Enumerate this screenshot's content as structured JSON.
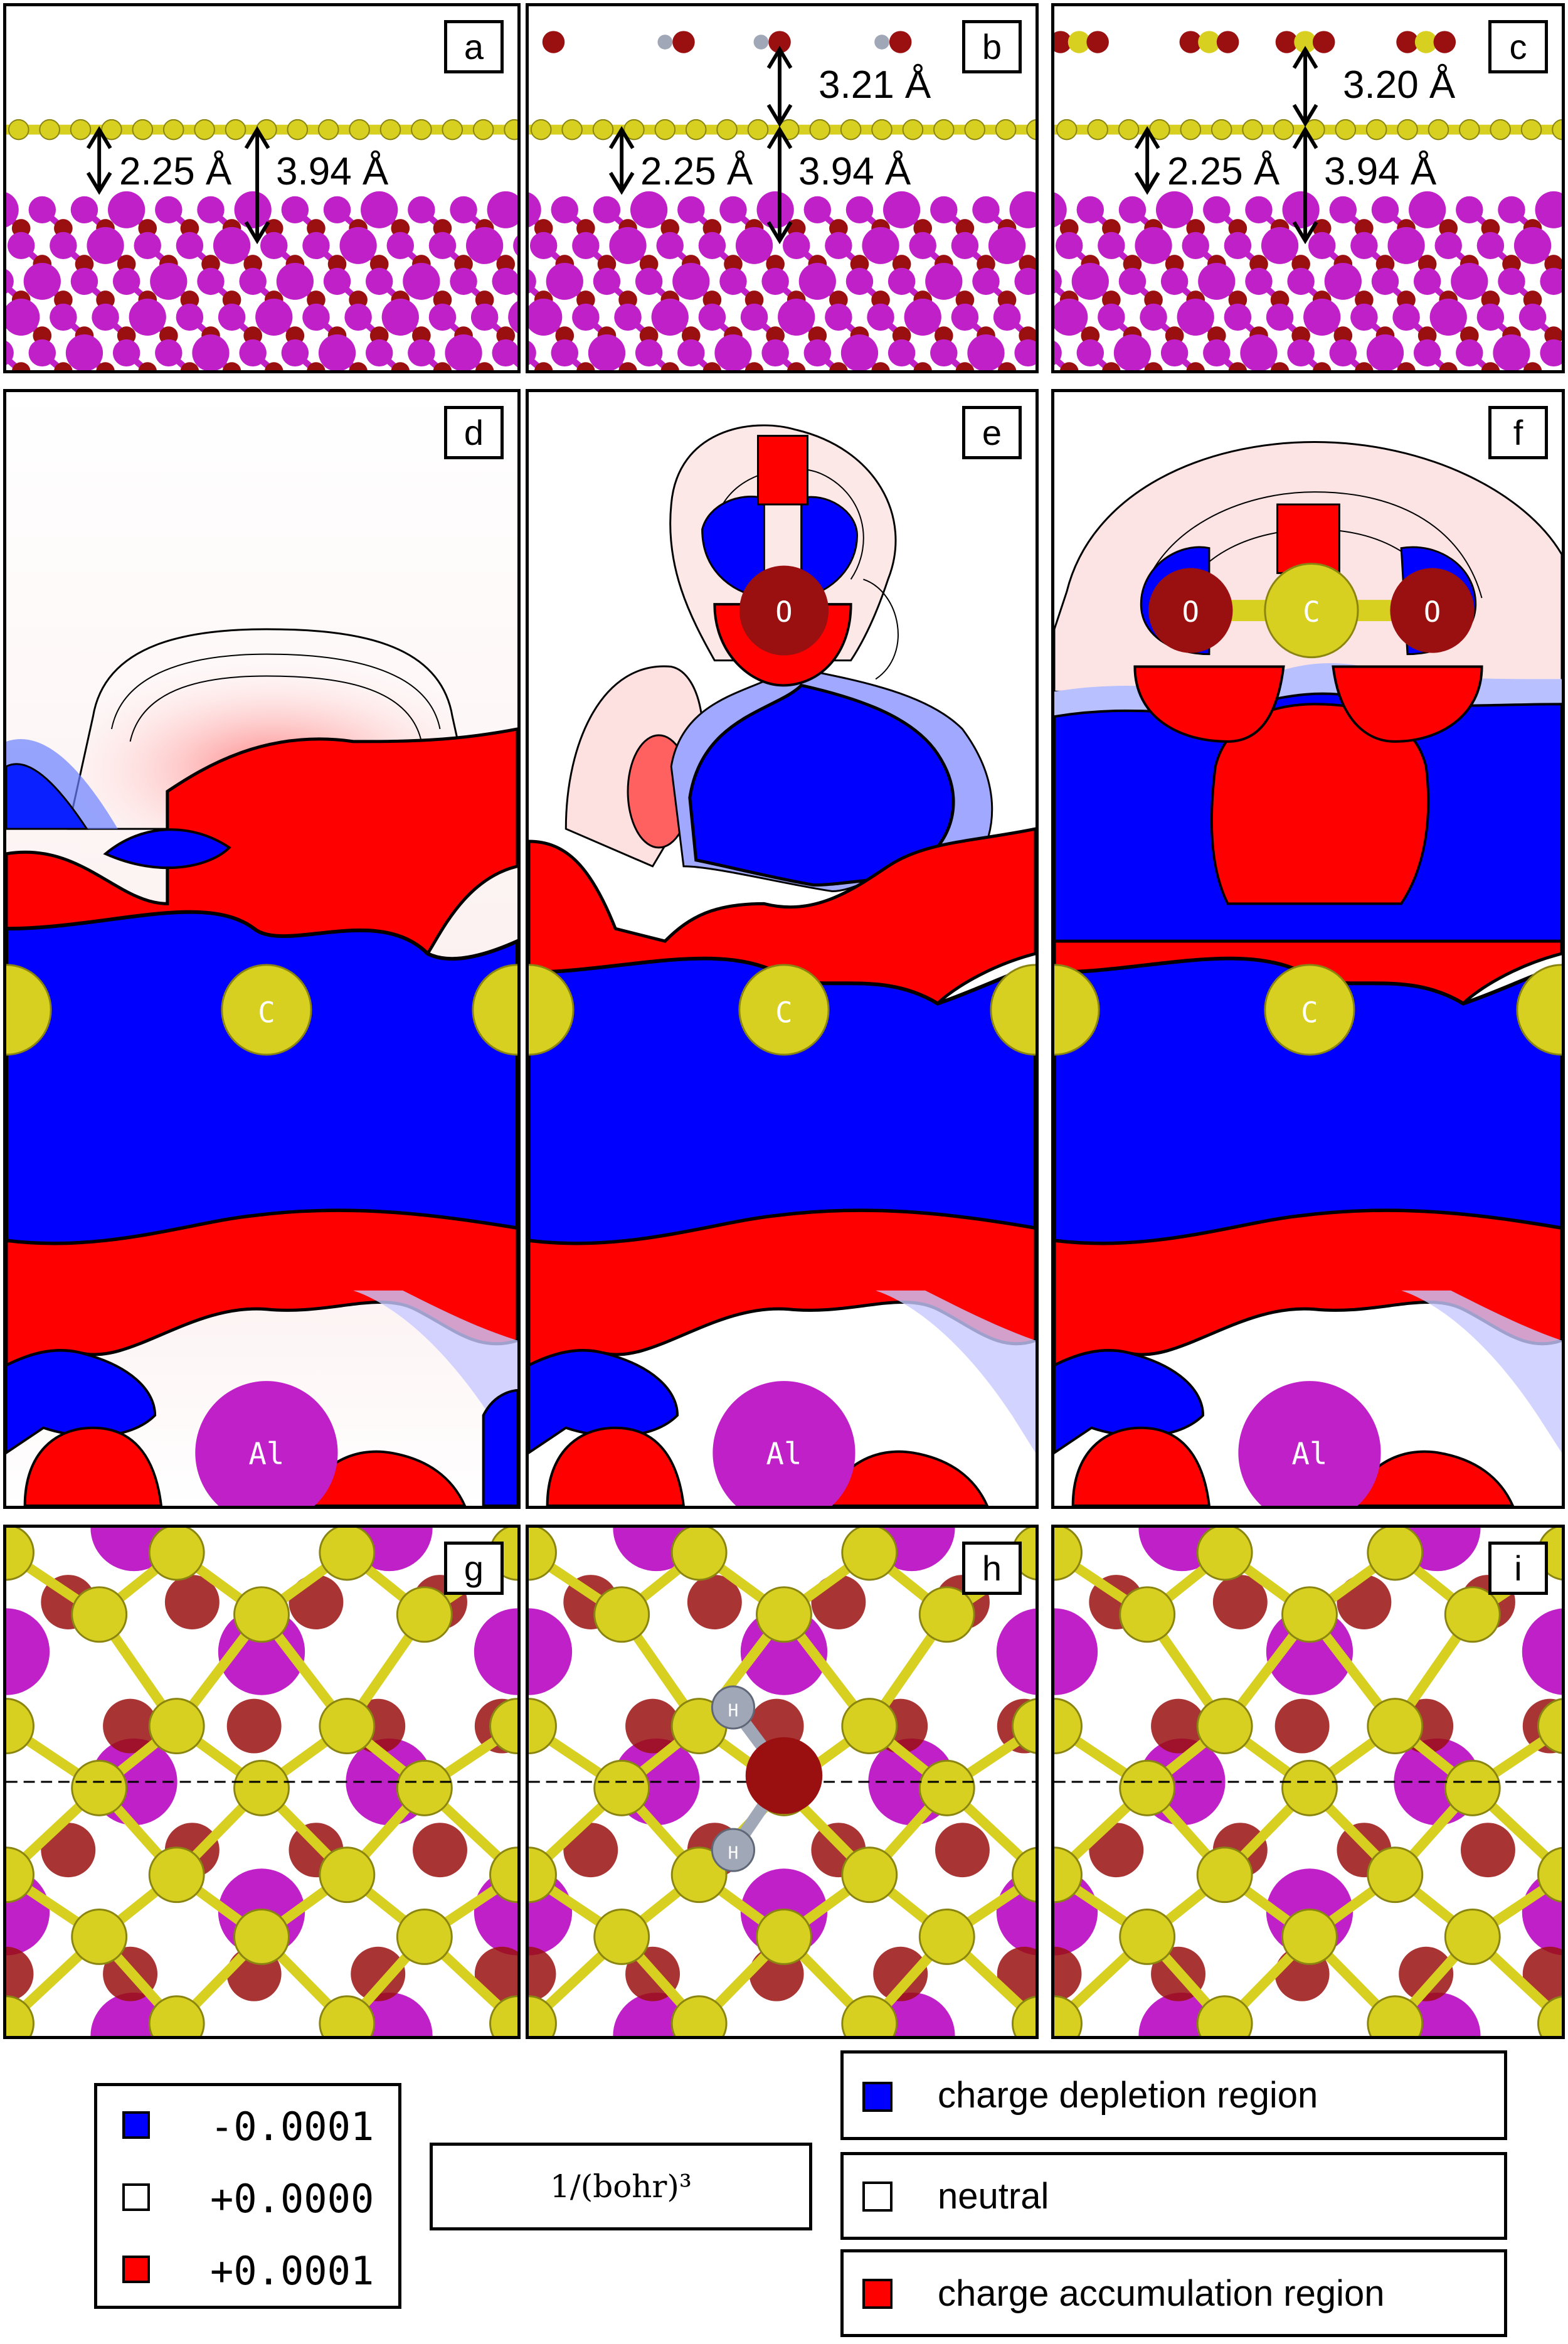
{
  "panels": {
    "a": "a",
    "b": "b",
    "c": "c",
    "d": "d",
    "e": "e",
    "f": "f",
    "g": "g",
    "h": "h",
    "i": "i"
  },
  "distances": {
    "a_left": "2.25 Å",
    "a_right": "3.94 Å",
    "b_top": "3.21 Å",
    "b_left": "2.25 Å",
    "b_right": "3.94 Å",
    "c_top": "3.20 Å",
    "c_left": "2.25 Å",
    "c_right": "3.94 Å"
  },
  "atoms": {
    "carbon": "C",
    "oxygen": "O",
    "aluminum": "Al",
    "hydrogen": "H"
  },
  "legend": {
    "values": [
      {
        "value": "-0.0001",
        "color": "#0000ff"
      },
      {
        "value": "+0.0000",
        "color": "#ffffff"
      },
      {
        "value": "+0.0001",
        "color": "#ff0000"
      }
    ],
    "unit": "1/(bohr)³",
    "regions": [
      {
        "label": "charge depletion region",
        "color": "#0000ff"
      },
      {
        "label": "neutral",
        "color": "#ffffff"
      },
      {
        "label": "charge accumulation region",
        "color": "#ff0000"
      }
    ]
  },
  "colors": {
    "carbon": "#d8d020",
    "oxygen": "#9a1010",
    "aluminum": "#c020c8",
    "hydrogen": "#a0a8b8",
    "depletion": "#0000ff",
    "accumulation": "#ff0000"
  }
}
